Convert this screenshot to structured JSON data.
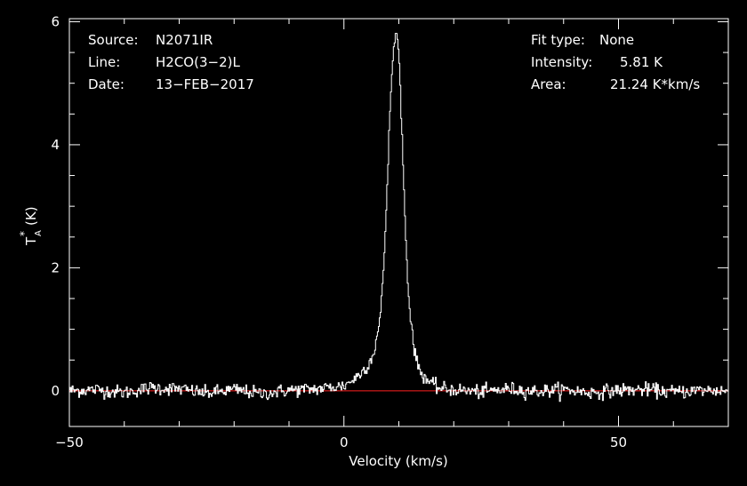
{
  "header": {
    "source_label": "Source:",
    "source_value": "N2071IR",
    "line_label": "Line:",
    "line_value": "H2CO(3−2)L",
    "date_label": "Date:",
    "date_value": "13−FEB−2017",
    "fit_label": "Fit type:",
    "fit_value": "None",
    "intensity_label": "Intensity:",
    "intensity_value": "5.81 K",
    "area_label": "Area:",
    "area_value": "21.24 K*km/s"
  },
  "chart_data": {
    "type": "line",
    "xlabel": "Velocity (km/s)",
    "ylabel_main": "T",
    "ylabel_sub": "A",
    "ylabel_sup": "*",
    "ylabel_unit": "(K)",
    "xlim": [
      -50,
      70
    ],
    "ylim": [
      -0.58,
      6.05
    ],
    "xticks": [
      -50,
      0,
      50
    ],
    "xtick_labels": [
      "−50",
      "0",
      "50"
    ],
    "yticks": [
      0,
      2,
      4,
      6
    ],
    "ytick_labels": [
      "0",
      "2",
      "4",
      "6"
    ],
    "baseline": 0,
    "grid": false,
    "colors": {
      "spectrum": "#ffffff",
      "baseline": "#ff2020",
      "background": "#000000",
      "frame": "#ffffff"
    },
    "peak": {
      "velocity": 9.5,
      "intensity": 5.81
    },
    "series": [
      {
        "x": [
          -50,
          -45,
          -40,
          -35,
          -30,
          -25,
          -20,
          -15,
          -10,
          -5,
          0,
          2,
          3,
          4,
          5,
          5.5,
          6,
          6.5,
          7,
          7.5,
          8,
          8.5,
          9,
          9.5,
          10,
          10.5,
          11,
          11.5,
          12,
          12.5,
          13,
          14,
          15,
          16,
          17,
          18,
          20,
          25,
          30,
          35,
          40,
          45,
          50,
          55,
          60,
          65,
          70
        ],
        "y": [
          0,
          0.02,
          -0.03,
          0.05,
          0.03,
          -0.04,
          0.02,
          -0.05,
          0.01,
          0.03,
          0.08,
          0.2,
          0.28,
          0.38,
          0.52,
          0.65,
          0.88,
          1.1,
          1.6,
          2.5,
          3.6,
          4.8,
          5.5,
          5.81,
          5.5,
          4.4,
          3.1,
          2.0,
          1.3,
          0.92,
          0.55,
          0.3,
          0.2,
          0.1,
          0.06,
          0.03,
          0.02,
          -0.02,
          0.03,
          -0.01,
          0.02,
          -0.03,
          0.01,
          0.02,
          -0.02,
          0.01,
          0
        ]
      }
    ]
  }
}
